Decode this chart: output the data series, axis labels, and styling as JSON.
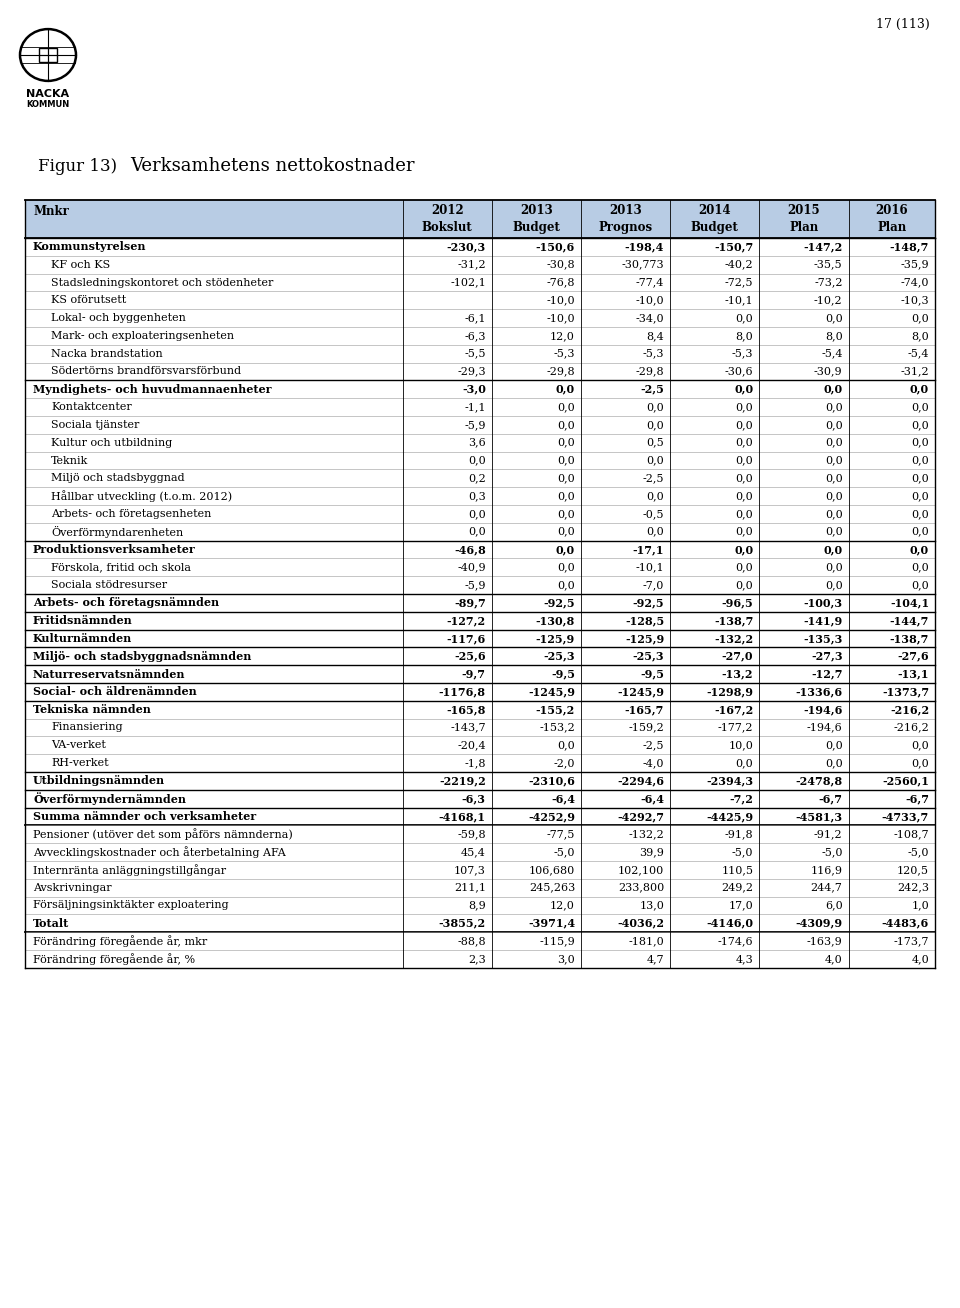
{
  "title_fig": "Figur 13)",
  "title_text": "Verksamhetens nettokostnader",
  "page_num": "17 (113)",
  "header_color": "#b8cce4",
  "col_headers_line1": [
    "Mnkr",
    "2012",
    "2013",
    "2013",
    "2014",
    "2015",
    "2016"
  ],
  "col_headers_line2": [
    "",
    "Bokslut",
    "Budget",
    "Prognos",
    "Budget",
    "Plan",
    "Plan"
  ],
  "rows": [
    {
      "label": "Kommunstyrelsen",
      "bold": true,
      "indent": 0,
      "values": [
        "-230,3",
        "-150,6",
        "-198,4",
        "-150,7",
        "-147,2",
        "-148,7"
      ]
    },
    {
      "label": "KF och KS",
      "bold": false,
      "indent": 1,
      "values": [
        "-31,2",
        "-30,8",
        "-30,773",
        "-40,2",
        "-35,5",
        "-35,9"
      ]
    },
    {
      "label": "Stadsledningskontoret och stödenheter",
      "bold": false,
      "indent": 1,
      "values": [
        "-102,1",
        "-76,8",
        "-77,4",
        "-72,5",
        "-73,2",
        "-74,0"
      ]
    },
    {
      "label": "KS oförutsett",
      "bold": false,
      "indent": 1,
      "values": [
        "",
        "-10,0",
        "-10,0",
        "-10,1",
        "-10,2",
        "-10,3"
      ]
    },
    {
      "label": "Lokal- och byggenheten",
      "bold": false,
      "indent": 1,
      "values": [
        "-6,1",
        "-10,0",
        "-34,0",
        "0,0",
        "0,0",
        "0,0"
      ]
    },
    {
      "label": "Mark- och exploateringsenheten",
      "bold": false,
      "indent": 1,
      "values": [
        "-6,3",
        "12,0",
        "8,4",
        "8,0",
        "8,0",
        "8,0"
      ]
    },
    {
      "label": "Nacka brandstation",
      "bold": false,
      "indent": 1,
      "values": [
        "-5,5",
        "-5,3",
        "-5,3",
        "-5,3",
        "-5,4",
        "-5,4"
      ]
    },
    {
      "label": "Södertörns brandförsvarsförbund",
      "bold": false,
      "indent": 1,
      "values": [
        "-29,3",
        "-29,8",
        "-29,8",
        "-30,6",
        "-30,9",
        "-31,2"
      ]
    },
    {
      "label": "Myndighets- och huvudmannaenheter",
      "bold": true,
      "indent": 0,
      "values": [
        "-3,0",
        "0,0",
        "-2,5",
        "0,0",
        "0,0",
        "0,0"
      ]
    },
    {
      "label": "Kontaktcenter",
      "bold": false,
      "indent": 1,
      "values": [
        "-1,1",
        "0,0",
        "0,0",
        "0,0",
        "0,0",
        "0,0"
      ]
    },
    {
      "label": "Sociala tjänster",
      "bold": false,
      "indent": 1,
      "values": [
        "-5,9",
        "0,0",
        "0,0",
        "0,0",
        "0,0",
        "0,0"
      ]
    },
    {
      "label": "Kultur och utbildning",
      "bold": false,
      "indent": 1,
      "values": [
        "3,6",
        "0,0",
        "0,5",
        "0,0",
        "0,0",
        "0,0"
      ]
    },
    {
      "label": "Teknik",
      "bold": false,
      "indent": 1,
      "values": [
        "0,0",
        "0,0",
        "0,0",
        "0,0",
        "0,0",
        "0,0"
      ]
    },
    {
      "label": "Miljö och stadsbyggnad",
      "bold": false,
      "indent": 1,
      "values": [
        "0,2",
        "0,0",
        "-2,5",
        "0,0",
        "0,0",
        "0,0"
      ]
    },
    {
      "label": "Hållbar utveckling (t.o.m. 2012)",
      "bold": false,
      "indent": 1,
      "values": [
        "0,3",
        "0,0",
        "0,0",
        "0,0",
        "0,0",
        "0,0"
      ]
    },
    {
      "label": "Arbets- och företagsenheten",
      "bold": false,
      "indent": 1,
      "values": [
        "0,0",
        "0,0",
        "-0,5",
        "0,0",
        "0,0",
        "0,0"
      ]
    },
    {
      "label": "Överförmyndarenheten",
      "bold": false,
      "indent": 1,
      "values": [
        "0,0",
        "0,0",
        "0,0",
        "0,0",
        "0,0",
        "0,0"
      ]
    },
    {
      "label": "Produktionsverksamheter",
      "bold": true,
      "indent": 0,
      "values": [
        "-46,8",
        "0,0",
        "-17,1",
        "0,0",
        "0,0",
        "0,0"
      ]
    },
    {
      "label": "Förskola, fritid och skola",
      "bold": false,
      "indent": 1,
      "values": [
        "-40,9",
        "0,0",
        "-10,1",
        "0,0",
        "0,0",
        "0,0"
      ]
    },
    {
      "label": "Sociala stödresurser",
      "bold": false,
      "indent": 1,
      "values": [
        "-5,9",
        "0,0",
        "-7,0",
        "0,0",
        "0,0",
        "0,0"
      ]
    },
    {
      "label": "Arbets- och företagsnämnden",
      "bold": true,
      "indent": 0,
      "values": [
        "-89,7",
        "-92,5",
        "-92,5",
        "-96,5",
        "-100,3",
        "-104,1"
      ]
    },
    {
      "label": "Fritidsnämnden",
      "bold": true,
      "indent": 0,
      "values": [
        "-127,2",
        "-130,8",
        "-128,5",
        "-138,7",
        "-141,9",
        "-144,7"
      ]
    },
    {
      "label": "Kulturnämnden",
      "bold": true,
      "indent": 0,
      "values": [
        "-117,6",
        "-125,9",
        "-125,9",
        "-132,2",
        "-135,3",
        "-138,7"
      ]
    },
    {
      "label": "Miljö- och stadsbyggnadsnämnden",
      "bold": true,
      "indent": 0,
      "values": [
        "-25,6",
        "-25,3",
        "-25,3",
        "-27,0",
        "-27,3",
        "-27,6"
      ]
    },
    {
      "label": "Naturreservatsnämnden",
      "bold": true,
      "indent": 0,
      "values": [
        "-9,7",
        "-9,5",
        "-9,5",
        "-13,2",
        "-12,7",
        "-13,1"
      ]
    },
    {
      "label": "Social- och äldrenämnden",
      "bold": true,
      "indent": 0,
      "values": [
        "-1176,8",
        "-1245,9",
        "-1245,9",
        "-1298,9",
        "-1336,6",
        "-1373,7"
      ]
    },
    {
      "label": "Tekniska nämnden",
      "bold": true,
      "indent": 0,
      "values": [
        "-165,8",
        "-155,2",
        "-165,7",
        "-167,2",
        "-194,6",
        "-216,2"
      ]
    },
    {
      "label": "Finansiering",
      "bold": false,
      "indent": 1,
      "values": [
        "-143,7",
        "-153,2",
        "-159,2",
        "-177,2",
        "-194,6",
        "-216,2"
      ]
    },
    {
      "label": "VA-verket",
      "bold": false,
      "indent": 1,
      "values": [
        "-20,4",
        "0,0",
        "-2,5",
        "10,0",
        "0,0",
        "0,0"
      ]
    },
    {
      "label": "RH-verket",
      "bold": false,
      "indent": 1,
      "values": [
        "-1,8",
        "-2,0",
        "-4,0",
        "0,0",
        "0,0",
        "0,0"
      ]
    },
    {
      "label": "Utbildningsnämnden",
      "bold": true,
      "indent": 0,
      "values": [
        "-2219,2",
        "-2310,6",
        "-2294,6",
        "-2394,3",
        "-2478,8",
        "-2560,1"
      ]
    },
    {
      "label": "Överförmyndernämnden",
      "bold": true,
      "indent": 0,
      "values": [
        "-6,3",
        "-6,4",
        "-6,4",
        "-7,2",
        "-6,7",
        "-6,7"
      ]
    },
    {
      "label": "Summa nämnder och verksamheter",
      "bold": true,
      "indent": 0,
      "values": [
        "-4168,1",
        "-4252,9",
        "-4292,7",
        "-4425,9",
        "-4581,3",
        "-4733,7"
      ]
    },
    {
      "label": "Pensioner (utöver det som påförs nämnderna)",
      "bold": false,
      "indent": 0,
      "values": [
        "-59,8",
        "-77,5",
        "-132,2",
        "-91,8",
        "-91,2",
        "-108,7"
      ]
    },
    {
      "label": "Avvecklingskostnader och återbetalning AFA",
      "bold": false,
      "indent": 0,
      "values": [
        "45,4",
        "-5,0",
        "39,9",
        "-5,0",
        "-5,0",
        "-5,0"
      ]
    },
    {
      "label": "Internränta anläggningstillgångar",
      "bold": false,
      "indent": 0,
      "values": [
        "107,3",
        "106,680",
        "102,100",
        "110,5",
        "116,9",
        "120,5"
      ]
    },
    {
      "label": "Avskrivningar",
      "bold": false,
      "indent": 0,
      "values": [
        "211,1",
        "245,263",
        "233,800",
        "249,2",
        "244,7",
        "242,3"
      ]
    },
    {
      "label": "Försäljningsinktäkter exploatering",
      "bold": false,
      "indent": 0,
      "values": [
        "8,9",
        "12,0",
        "13,0",
        "17,0",
        "6,0",
        "1,0"
      ]
    },
    {
      "label": "Totalt",
      "bold": true,
      "indent": 0,
      "values": [
        "-3855,2",
        "-3971,4",
        "-4036,2",
        "-4146,0",
        "-4309,9",
        "-4483,6"
      ]
    },
    {
      "label": "Förändring föregående år, mkr",
      "bold": false,
      "indent": 0,
      "values": [
        "-88,8",
        "-115,9",
        "-181,0",
        "-174,6",
        "-163,9",
        "-173,7"
      ]
    },
    {
      "label": "Förändring föregående år, %",
      "bold": false,
      "indent": 0,
      "values": [
        "2,3",
        "3,0",
        "4,7",
        "4,3",
        "4,0",
        "4,0"
      ]
    }
  ],
  "thick_top_rows": [
    "Kommunstyrelsen",
    "Myndighets- och huvudmannaenheter",
    "Produktionsverksamheter",
    "Arbets- och företagsnämnden",
    "Fritidsnämnden",
    "Kulturnämnden",
    "Miljö- och stadsbyggnadsnämnden",
    "Naturreservatsnämnden",
    "Social- och äldrenämnden",
    "Tekniska nämnden",
    "Utbildningsnämnden",
    "Överförmyndernämnden",
    "Summa nämnder och verksamheter"
  ],
  "thick_bottom_rows": [
    "Summa nämnder och verksamheter",
    "Totalt"
  ]
}
